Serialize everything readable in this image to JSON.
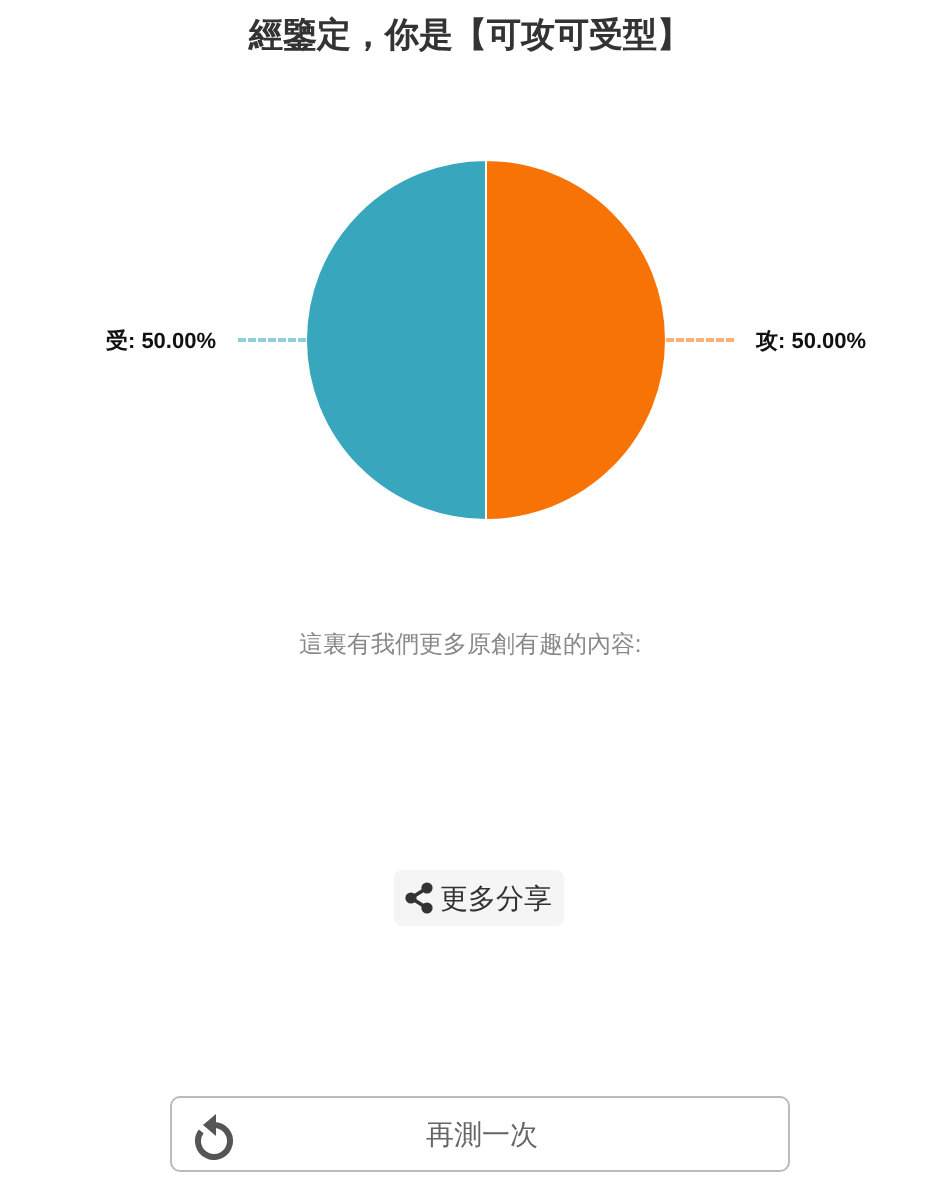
{
  "chart_data": {
    "type": "pie",
    "title": "經鑒定，你是【可攻可受型】",
    "categories": [
      "攻",
      "受"
    ],
    "values": [
      50,
      50
    ],
    "colors": [
      "#f77306",
      "#38a7bd"
    ],
    "value_labels": [
      "50.00%",
      "50.00%"
    ],
    "annotations": [
      "這裏有我們更多原創有趣的內容:",
      "更多分享",
      "再測一次"
    ]
  }
}
